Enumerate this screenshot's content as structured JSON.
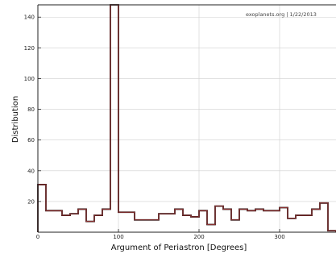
{
  "chart_data": {
    "type": "bar",
    "subtype": "step histogram",
    "watermark": "exoplanets.org | 1/22/2013",
    "xlabel": "Argument of Periastron [Degrees]",
    "ylabel": "Distribution",
    "xlim": [
      0,
      370
    ],
    "ylim": [
      0,
      148
    ],
    "x_ticks": [
      0,
      100,
      200,
      300
    ],
    "y_ticks": [
      20,
      40,
      60,
      80,
      100,
      120,
      140
    ],
    "grid": true,
    "bin_width": 10,
    "bins": [
      {
        "start": 0,
        "end": 10,
        "value": 31
      },
      {
        "start": 10,
        "end": 20,
        "value": 14
      },
      {
        "start": 20,
        "end": 30,
        "value": 14
      },
      {
        "start": 30,
        "end": 40,
        "value": 11
      },
      {
        "start": 40,
        "end": 50,
        "value": 12
      },
      {
        "start": 50,
        "end": 60,
        "value": 15
      },
      {
        "start": 60,
        "end": 70,
        "value": 7
      },
      {
        "start": 70,
        "end": 80,
        "value": 11
      },
      {
        "start": 80,
        "end": 90,
        "value": 15
      },
      {
        "start": 90,
        "end": 100,
        "value": 148
      },
      {
        "start": 100,
        "end": 110,
        "value": 13
      },
      {
        "start": 110,
        "end": 120,
        "value": 13
      },
      {
        "start": 120,
        "end": 130,
        "value": 8
      },
      {
        "start": 130,
        "end": 140,
        "value": 8
      },
      {
        "start": 140,
        "end": 150,
        "value": 8
      },
      {
        "start": 150,
        "end": 160,
        "value": 12
      },
      {
        "start": 160,
        "end": 170,
        "value": 12
      },
      {
        "start": 170,
        "end": 180,
        "value": 15
      },
      {
        "start": 180,
        "end": 190,
        "value": 11
      },
      {
        "start": 190,
        "end": 200,
        "value": 10
      },
      {
        "start": 200,
        "end": 210,
        "value": 14
      },
      {
        "start": 210,
        "end": 220,
        "value": 5
      },
      {
        "start": 220,
        "end": 230,
        "value": 17
      },
      {
        "start": 230,
        "end": 240,
        "value": 15
      },
      {
        "start": 240,
        "end": 250,
        "value": 8
      },
      {
        "start": 250,
        "end": 260,
        "value": 15
      },
      {
        "start": 260,
        "end": 270,
        "value": 14
      },
      {
        "start": 270,
        "end": 280,
        "value": 15
      },
      {
        "start": 280,
        "end": 290,
        "value": 14
      },
      {
        "start": 290,
        "end": 300,
        "value": 14
      },
      {
        "start": 300,
        "end": 310,
        "value": 16
      },
      {
        "start": 310,
        "end": 320,
        "value": 9
      },
      {
        "start": 320,
        "end": 330,
        "value": 11
      },
      {
        "start": 330,
        "end": 340,
        "value": 11
      },
      {
        "start": 340,
        "end": 350,
        "value": 15
      },
      {
        "start": 350,
        "end": 360,
        "value": 19
      },
      {
        "start": 360,
        "end": 370,
        "value": 1
      }
    ]
  },
  "colors": {
    "outline": "#2a0808",
    "outline_inner": "#c24a4a",
    "grid": "#cfcfcf",
    "frame": "#222222"
  }
}
